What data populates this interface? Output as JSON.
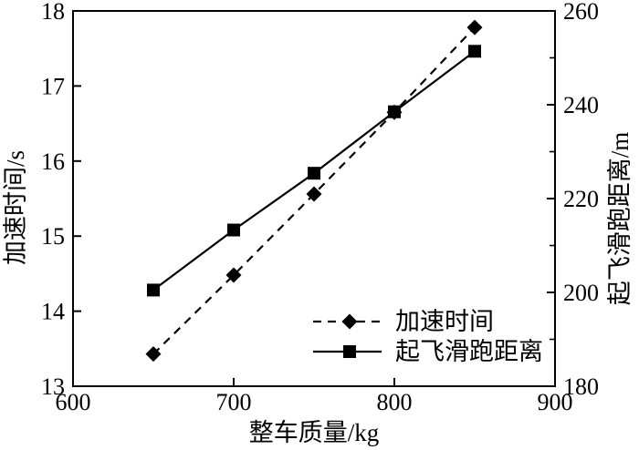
{
  "chart_data": {
    "type": "line",
    "title": "",
    "x": [
      650,
      700,
      750,
      800,
      850
    ],
    "series": [
      {
        "name": "加速时间",
        "axis": "left",
        "line_style": "dashed",
        "marker": "diamond",
        "color": "#000000",
        "values": [
          13.43,
          14.48,
          15.56,
          16.65,
          17.78
        ]
      },
      {
        "name": "起飞滑跑距离",
        "axis": "right",
        "line_style": "solid",
        "marker": "square",
        "color": "#000000",
        "values": [
          200.5,
          213.3,
          225.4,
          238.5,
          251.4
        ]
      }
    ],
    "xlabel": "整车质量/kg",
    "ylabel_left": "加速时间/s",
    "ylabel_right": "起飞滑跑距离/m",
    "xlim": [
      600,
      900
    ],
    "xticks": [
      600,
      700,
      800,
      900
    ],
    "ylim_left": [
      13,
      18
    ],
    "yticks_left": [
      13,
      14,
      15,
      16,
      17,
      18
    ],
    "ylim_right": [
      180,
      260
    ],
    "yticks_right": [
      180,
      200,
      220,
      240,
      260
    ],
    "yticks_right_minor": [
      190,
      210,
      230,
      250
    ],
    "grid": false,
    "legend_position": "inside lower right",
    "colors": {
      "line": "#000000",
      "background": "#ffffff"
    }
  }
}
